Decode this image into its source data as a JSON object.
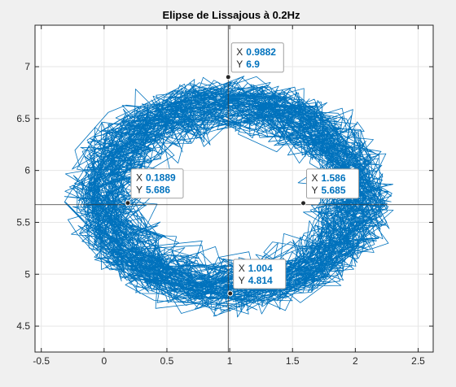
{
  "chart_data": {
    "type": "line",
    "title": "Elipse de Lissajous à 0.2Hz",
    "xlabel": "",
    "ylabel": "",
    "xlim": [
      -0.55,
      2.62
    ],
    "ylim": [
      4.25,
      7.4
    ],
    "x_ticks": [
      -0.5,
      0,
      0.5,
      1,
      1.5,
      2,
      2.5
    ],
    "x_tick_labels": [
      "-0.5",
      "0",
      "0.5",
      "1",
      "1.5",
      "2",
      "2.5"
    ],
    "y_ticks": [
      4.5,
      5,
      5.5,
      6,
      6.5,
      7
    ],
    "y_tick_labels": [
      "4.5",
      "5",
      "5.5",
      "6",
      "6.5",
      "7"
    ],
    "grid": true,
    "series_color": "#0072bd",
    "crosshair": {
      "x": 0.9882,
      "y": 5.67
    },
    "ellipse": {
      "cx": 1.0,
      "cy": 5.75,
      "rx": 1.18,
      "ry": 1.05,
      "noise_x": 0.16,
      "noise_y": 0.14
    },
    "datatips": [
      {
        "x": 0.9882,
        "y": 6.9,
        "x_label": "X",
        "y_label": "Y",
        "x_text": "0.9882",
        "y_text": "6.9"
      },
      {
        "x": 0.1889,
        "y": 5.686,
        "x_label": "X",
        "y_label": "Y",
        "x_text": "0.1889",
        "y_text": "5.686"
      },
      {
        "x": 1.586,
        "y": 5.685,
        "x_label": "X",
        "y_label": "Y",
        "x_text": "1.586",
        "y_text": "5.685"
      },
      {
        "x": 1.004,
        "y": 4.814,
        "x_label": "X",
        "y_label": "Y",
        "x_text": "1.004",
        "y_text": "4.814"
      }
    ]
  }
}
